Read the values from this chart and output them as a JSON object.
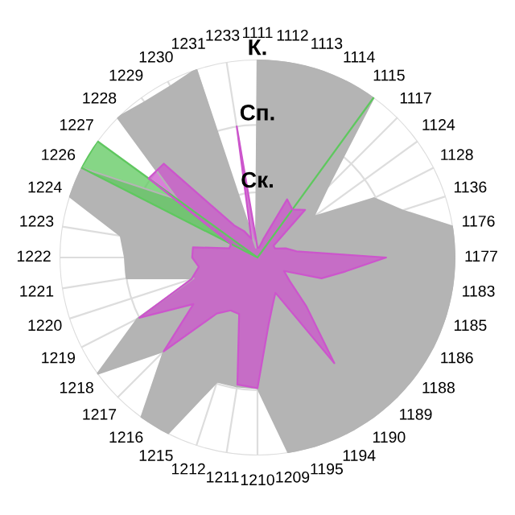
{
  "chart_data": {
    "type": "radar",
    "ylim": [
      0,
      1
    ],
    "categories": [
      "1111",
      "1112",
      "1113",
      "1114",
      "1115",
      "1117",
      "1124",
      "1128",
      "1136",
      "1176",
      "1177",
      "1183",
      "1185",
      "1186",
      "1188",
      "1189",
      "1190",
      "1194",
      "1195",
      "1209",
      "1210",
      "1211",
      "1212",
      "1215",
      "1216",
      "1217",
      "1218",
      "1219",
      "1220",
      "1221",
      "1222",
      "1223",
      "1224",
      "1226",
      "1227",
      "1228",
      "1229",
      "1230",
      "1231",
      "1233"
    ],
    "yticks": [
      {
        "value": 0.33,
        "label": "Ск."
      },
      {
        "value": 0.67,
        "label": "Сп."
      },
      {
        "value": 1,
        "label": "К."
      }
    ],
    "grid": true,
    "series": [
      {
        "color": "#b4b4b4",
        "values": [
          1,
          1,
          1,
          1,
          1,
          0.5,
          0.35,
          0.66,
          0.77,
          1,
          1,
          1,
          1,
          1,
          1,
          1,
          1,
          1,
          1,
          1,
          0.66,
          0.66,
          0.66,
          1,
          1,
          0.67,
          1,
          0.68,
          0.34,
          0.67,
          0.67,
          0.7,
          1,
          1,
          0.5,
          1,
          0.97,
          0.97,
          1,
          0.05
        ]
      },
      {
        "color": "#5ec85e",
        "values": [
          0,
          0,
          0,
          0,
          1,
          0,
          0,
          0,
          0,
          0,
          0,
          0,
          0,
          0,
          0,
          0,
          0,
          0,
          0,
          0,
          0,
          0,
          0,
          0,
          0,
          0,
          0,
          0,
          0,
          0,
          0,
          0,
          0,
          1,
          1,
          0,
          0,
          0,
          0,
          0
        ]
      },
      {
        "color": "#cc55cc",
        "values": [
          0.05,
          0.05,
          0.1,
          0.33,
          0.3,
          0.34,
          0.1,
          0.1,
          0.15,
          0.2,
          0.65,
          0.45,
          0.34,
          0.15,
          0.2,
          0.35,
          0.66,
          0.2,
          0.25,
          0.35,
          0.66,
          0.65,
          0.3,
          0.3,
          0.35,
          0.67,
          0.4,
          0.67,
          0.35,
          0.3,
          0.33,
          0.33,
          0.15,
          0.15,
          0.68,
          0.67,
          0.2,
          0.15,
          0.1,
          0.67
        ]
      }
    ]
  }
}
